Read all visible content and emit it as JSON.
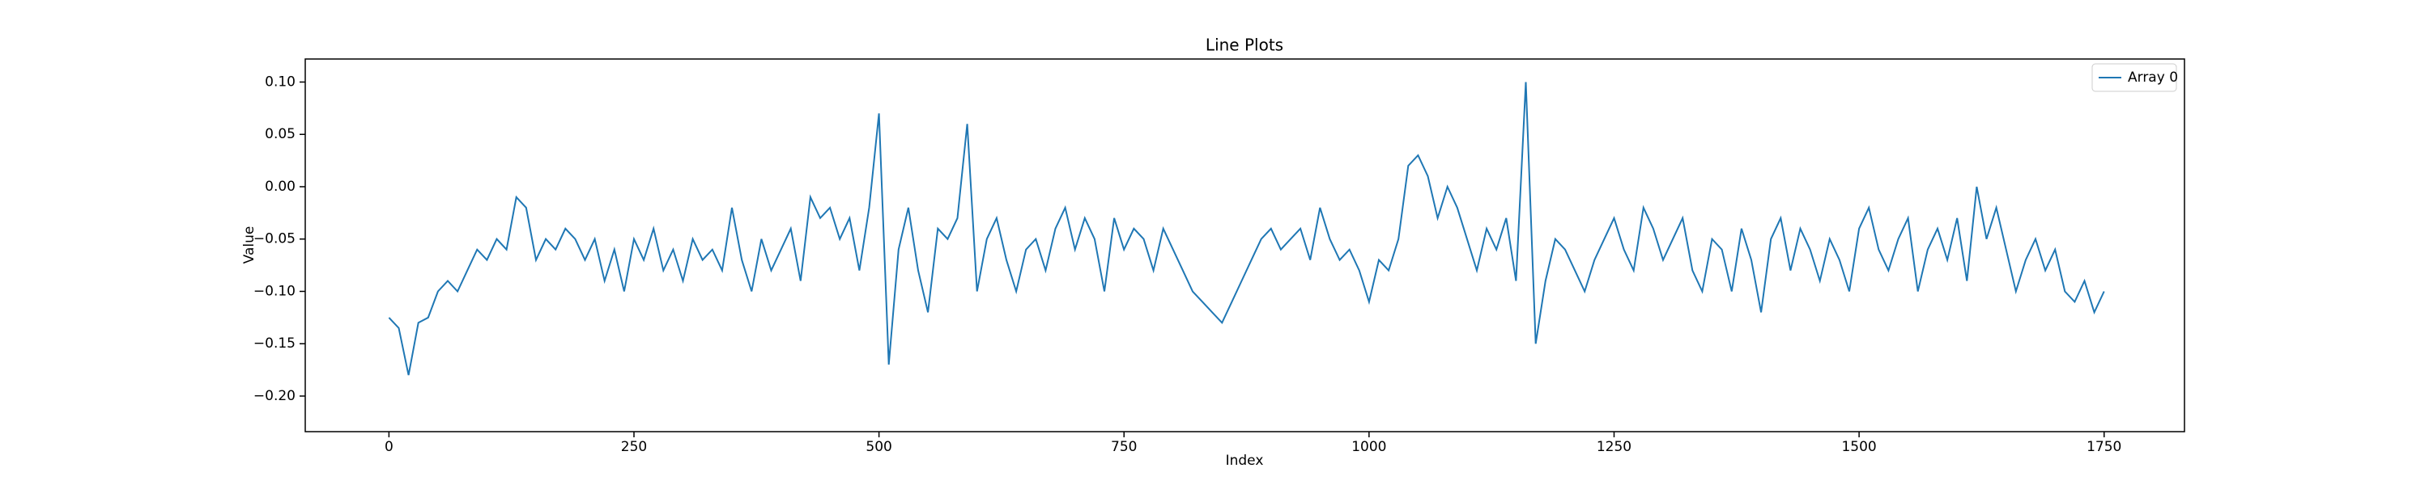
{
  "chart_data": {
    "type": "line",
    "title": "Line Plots",
    "x_label": "Index",
    "y_label": "Value",
    "x": [
      0,
      10,
      20,
      30,
      40,
      50,
      60,
      70,
      80,
      90,
      100,
      110,
      120,
      130,
      140,
      150,
      160,
      170,
      180,
      190,
      200,
      210,
      220,
      230,
      240,
      250,
      260,
      270,
      280,
      290,
      300,
      310,
      320,
      330,
      340,
      350,
      360,
      370,
      380,
      390,
      400,
      410,
      420,
      430,
      440,
      450,
      460,
      470,
      480,
      490,
      500,
      510,
      520,
      530,
      540,
      550,
      560,
      570,
      580,
      590,
      600,
      610,
      620,
      630,
      640,
      650,
      660,
      670,
      680,
      690,
      700,
      710,
      720,
      730,
      740,
      750,
      760,
      770,
      780,
      790,
      800,
      810,
      820,
      830,
      840,
      850,
      860,
      870,
      880,
      890,
      900,
      910,
      920,
      930,
      940,
      950,
      960,
      970,
      980,
      990,
      1000,
      1010,
      1020,
      1030,
      1040,
      1050,
      1060,
      1070,
      1080,
      1090,
      1100,
      1110,
      1120,
      1130,
      1140,
      1150,
      1160,
      1170,
      1180,
      1190,
      1200,
      1210,
      1220,
      1230,
      1240,
      1250,
      1260,
      1270,
      1280,
      1290,
      1300,
      1310,
      1320,
      1330,
      1340,
      1350,
      1360,
      1370,
      1380,
      1390,
      1400,
      1410,
      1420,
      1430,
      1440,
      1450,
      1460,
      1470,
      1480,
      1490,
      1500,
      1510,
      1520,
      1530,
      1540,
      1550,
      1560,
      1570,
      1580,
      1590,
      1600,
      1610,
      1620,
      1630,
      1640,
      1650,
      1660,
      1670,
      1680,
      1690,
      1700,
      1710,
      1720,
      1730,
      1740,
      1750
    ],
    "series": [
      {
        "name": "Array 0",
        "color": "#1f77b4",
        "values": [
          -0.125,
          -0.135,
          -0.18,
          -0.13,
          -0.125,
          -0.1,
          -0.09,
          -0.1,
          -0.08,
          -0.06,
          -0.07,
          -0.05,
          -0.06,
          -0.01,
          -0.02,
          -0.07,
          -0.05,
          -0.06,
          -0.04,
          -0.05,
          -0.07,
          -0.05,
          -0.09,
          -0.06,
          -0.1,
          -0.05,
          -0.07,
          -0.04,
          -0.08,
          -0.06,
          -0.09,
          -0.05,
          -0.07,
          -0.06,
          -0.08,
          -0.02,
          -0.07,
          -0.1,
          -0.05,
          -0.08,
          -0.06,
          -0.04,
          -0.09,
          -0.01,
          -0.03,
          -0.02,
          -0.05,
          -0.03,
          -0.08,
          -0.02,
          0.07,
          -0.17,
          -0.06,
          -0.02,
          -0.08,
          -0.12,
          -0.04,
          -0.05,
          -0.03,
          0.06,
          -0.1,
          -0.05,
          -0.03,
          -0.07,
          -0.1,
          -0.06,
          -0.05,
          -0.08,
          -0.04,
          -0.02,
          -0.06,
          -0.03,
          -0.05,
          -0.1,
          -0.03,
          -0.06,
          -0.04,
          -0.05,
          -0.08,
          -0.04,
          -0.06,
          -0.08,
          -0.1,
          -0.11,
          -0.12,
          -0.13,
          -0.11,
          -0.09,
          -0.07,
          -0.05,
          -0.04,
          -0.06,
          -0.05,
          -0.04,
          -0.07,
          -0.02,
          -0.05,
          -0.07,
          -0.06,
          -0.08,
          -0.11,
          -0.07,
          -0.08,
          -0.05,
          0.02,
          0.03,
          0.01,
          -0.03,
          0.0,
          -0.02,
          -0.05,
          -0.08,
          -0.04,
          -0.06,
          -0.03,
          -0.09,
          0.1,
          -0.15,
          -0.09,
          -0.05,
          -0.06,
          -0.08,
          -0.1,
          -0.07,
          -0.05,
          -0.03,
          -0.06,
          -0.08,
          -0.02,
          -0.04,
          -0.07,
          -0.05,
          -0.03,
          -0.08,
          -0.1,
          -0.05,
          -0.06,
          -0.1,
          -0.04,
          -0.07,
          -0.12,
          -0.05,
          -0.03,
          -0.08,
          -0.04,
          -0.06,
          -0.09,
          -0.05,
          -0.07,
          -0.1,
          -0.04,
          -0.02,
          -0.06,
          -0.08,
          -0.05,
          -0.03,
          -0.1,
          -0.06,
          -0.04,
          -0.07,
          -0.03,
          -0.09,
          0.0,
          -0.05,
          -0.02,
          -0.06,
          -0.1,
          -0.07,
          -0.05,
          -0.08,
          -0.06,
          -0.1,
          -0.11,
          -0.09,
          -0.12,
          -0.1
        ]
      }
    ],
    "xlim": [
      -85.4,
      1832
    ],
    "ylim": [
      -0.234,
      0.122
    ],
    "xticks": [
      0,
      250,
      500,
      750,
      1000,
      1250,
      1500,
      1750
    ],
    "yticks": [
      {
        "value": -0.2,
        "label": "−0.20"
      },
      {
        "value": -0.15,
        "label": "−0.15"
      },
      {
        "value": -0.1,
        "label": "−0.10"
      },
      {
        "value": -0.05,
        "label": "−0.05"
      },
      {
        "value": 0,
        "label": "0.00"
      },
      {
        "value": 0.05,
        "label": "0.05"
      },
      {
        "value": 0.1,
        "label": "0.10"
      }
    ],
    "legend": "upper right"
  }
}
